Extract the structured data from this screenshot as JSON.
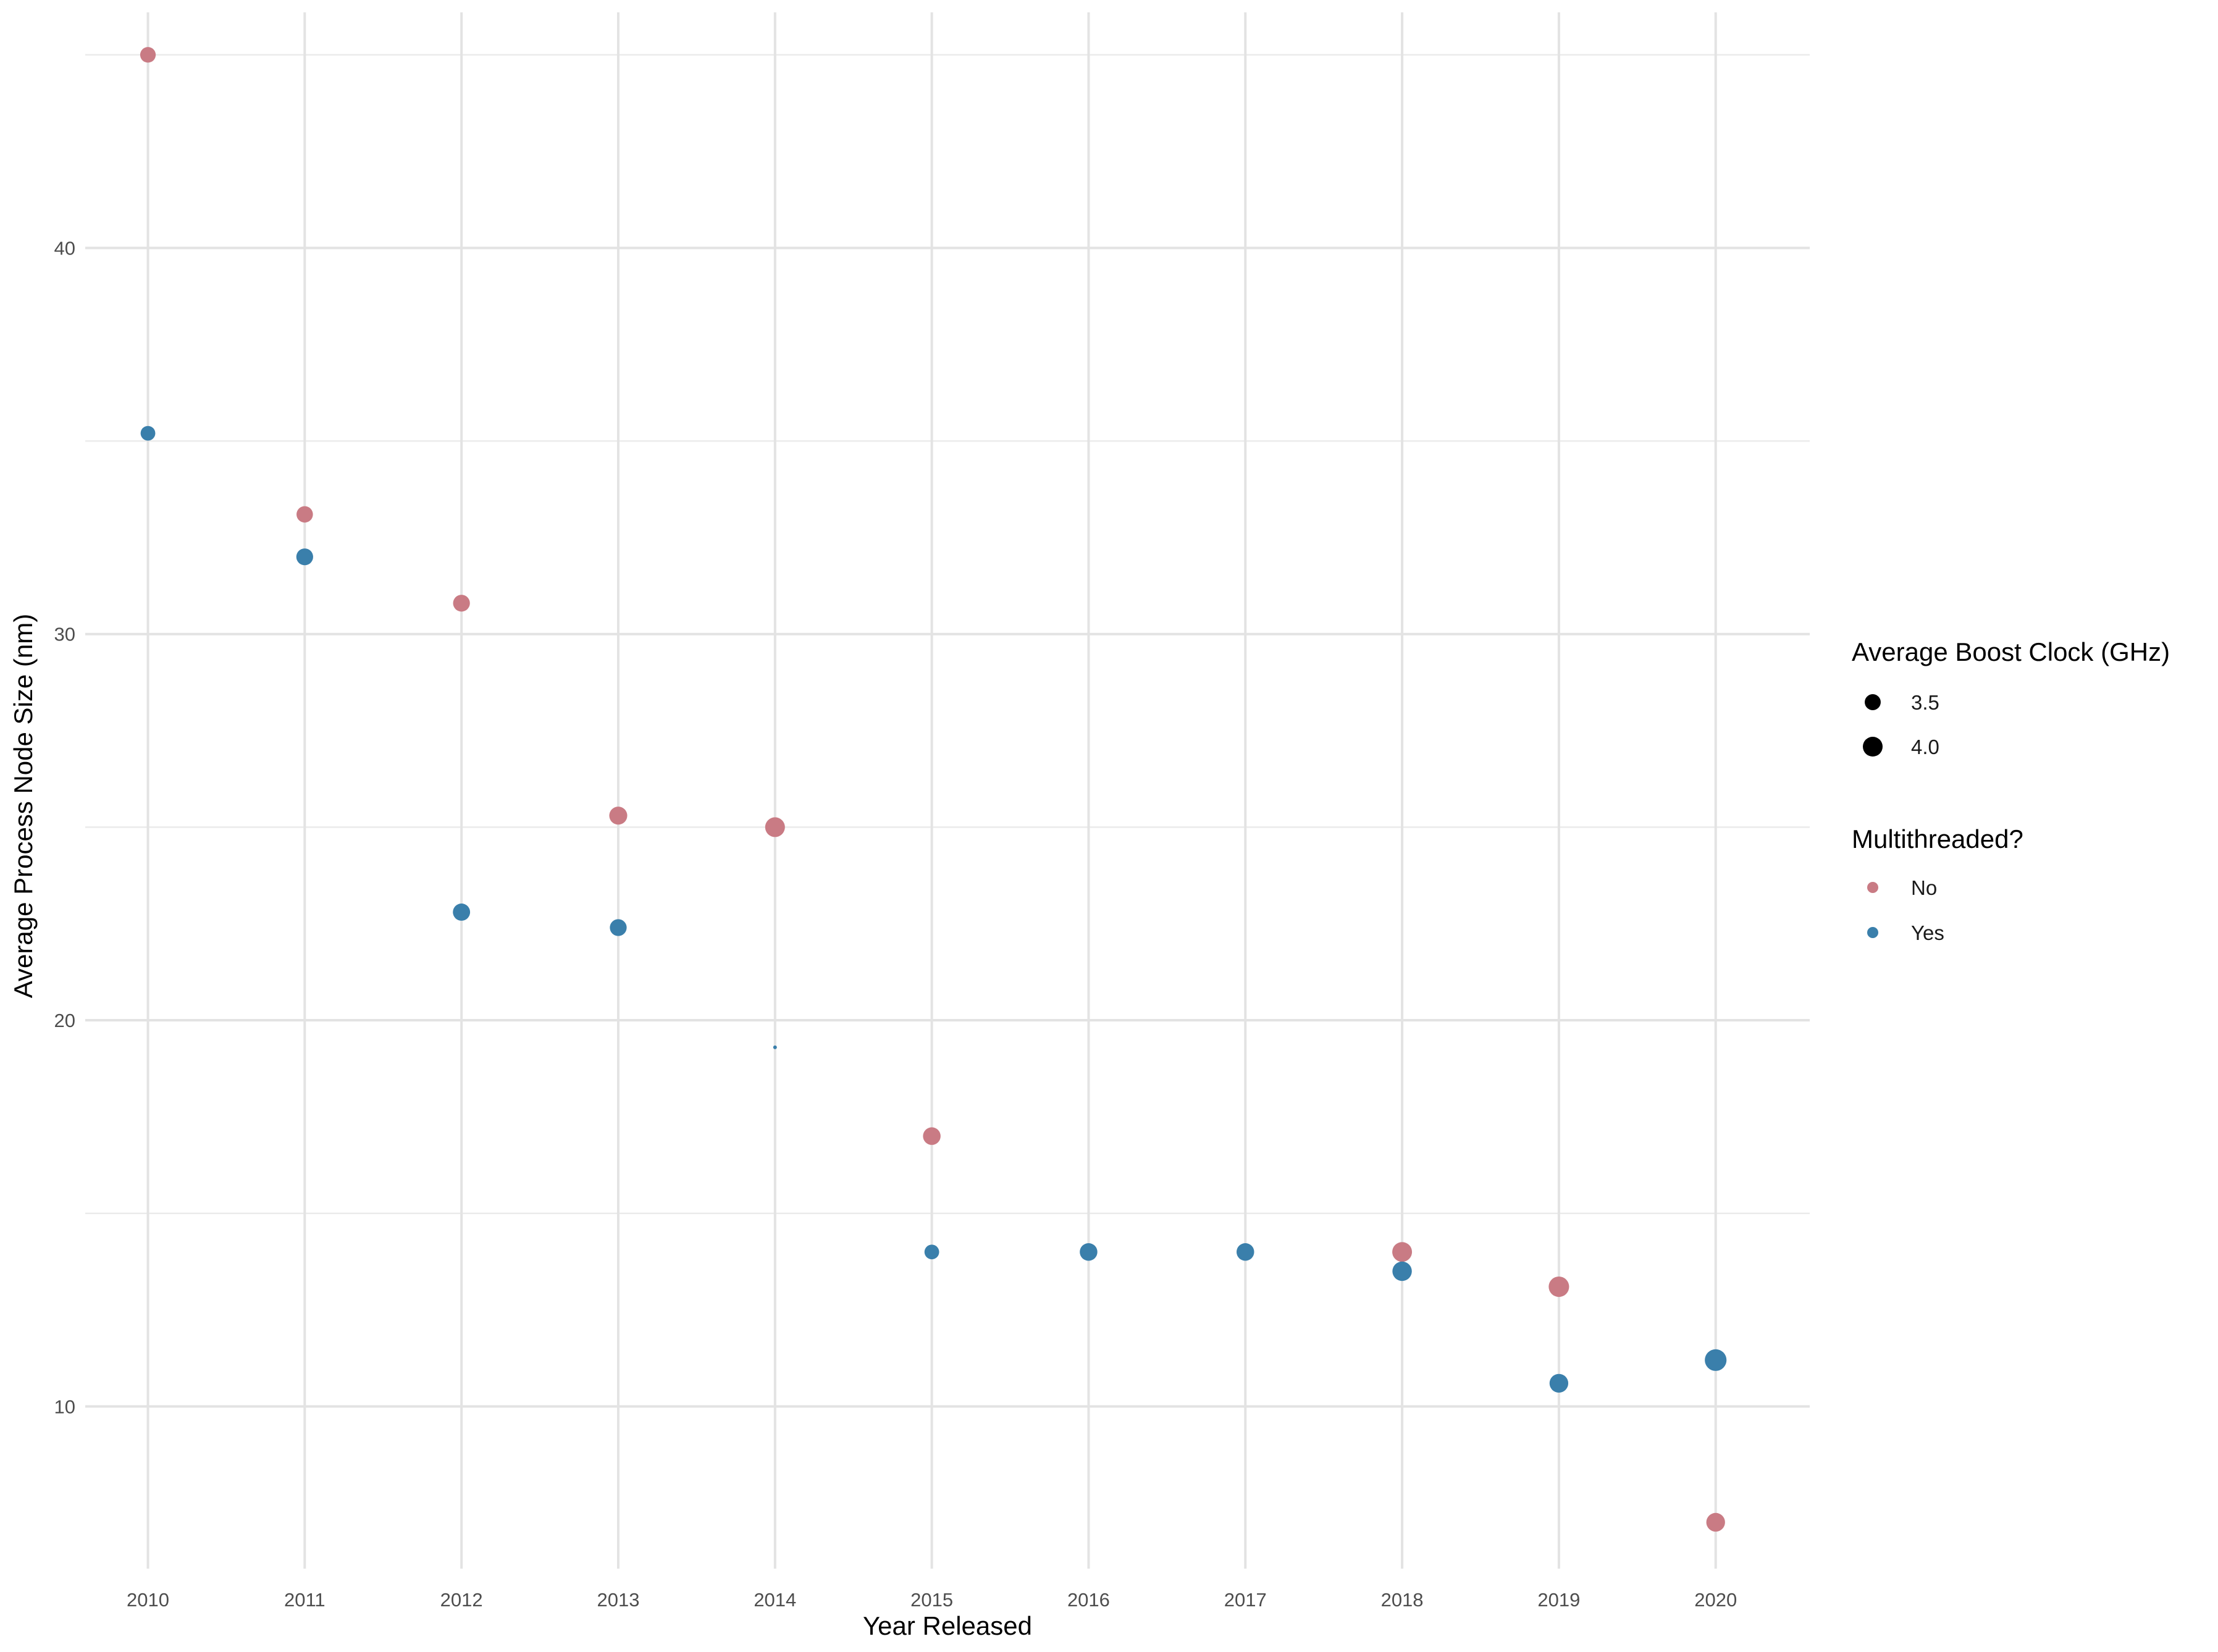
{
  "chart_data": {
    "type": "scatter",
    "xlabel": "Year Released",
    "ylabel": "Average Process Node Size (nm)",
    "x_ticks": [
      "2010",
      "2011",
      "2012",
      "2013",
      "2014",
      "2015",
      "2016",
      "2017",
      "2018",
      "2019",
      "2020"
    ],
    "y_ticks": [
      "10",
      "20",
      "30",
      "40"
    ],
    "xlim": [
      2009.6,
      2020.6
    ],
    "ylim": [
      5.8,
      46.1
    ],
    "grid": true,
    "legend_position": "right",
    "size_legend": {
      "title": "Average Boost Clock (GHz)",
      "entries": [
        {
          "label": "3.5",
          "value": 3.5
        },
        {
          "label": "4.0",
          "value": 4.0
        }
      ]
    },
    "color_legend": {
      "title": "Multithreaded?",
      "entries": [
        {
          "label": "No",
          "color": "#c97b84"
        },
        {
          "label": "Yes",
          "color": "#3a7fab"
        }
      ]
    },
    "series": [
      {
        "name": "No",
        "color": "#c97b84",
        "points": [
          {
            "x": 2010,
            "y": 45.0,
            "size": 3.45
          },
          {
            "x": 2011,
            "y": 33.1,
            "size": 3.55
          },
          {
            "x": 2012,
            "y": 30.8,
            "size": 3.6
          },
          {
            "x": 2013,
            "y": 25.3,
            "size": 3.75
          },
          {
            "x": 2014,
            "y": 25.0,
            "size": 4.0
          },
          {
            "x": 2015,
            "y": 17.0,
            "size": 3.7
          },
          {
            "x": 2018,
            "y": 14.0,
            "size": 4.0
          },
          {
            "x": 2019,
            "y": 13.1,
            "size": 4.1
          },
          {
            "x": 2020,
            "y": 7.0,
            "size": 3.85
          }
        ]
      },
      {
        "name": "Yes",
        "color": "#3a7fab",
        "points": [
          {
            "x": 2010,
            "y": 35.2,
            "size": 3.35
          },
          {
            "x": 2011,
            "y": 32.0,
            "size": 3.6
          },
          {
            "x": 2012,
            "y": 22.8,
            "size": 3.65
          },
          {
            "x": 2013,
            "y": 22.4,
            "size": 3.6
          },
          {
            "x": 2014,
            "y": 19.3,
            "size": 2.6
          },
          {
            "x": 2015,
            "y": 14.0,
            "size": 3.35
          },
          {
            "x": 2016,
            "y": 14.0,
            "size": 3.7
          },
          {
            "x": 2017,
            "y": 14.0,
            "size": 3.7
          },
          {
            "x": 2018,
            "y": 13.5,
            "size": 3.95
          },
          {
            "x": 2019,
            "y": 10.6,
            "size": 3.85
          },
          {
            "x": 2020,
            "y": 11.2,
            "size": 4.3
          }
        ]
      }
    ]
  }
}
